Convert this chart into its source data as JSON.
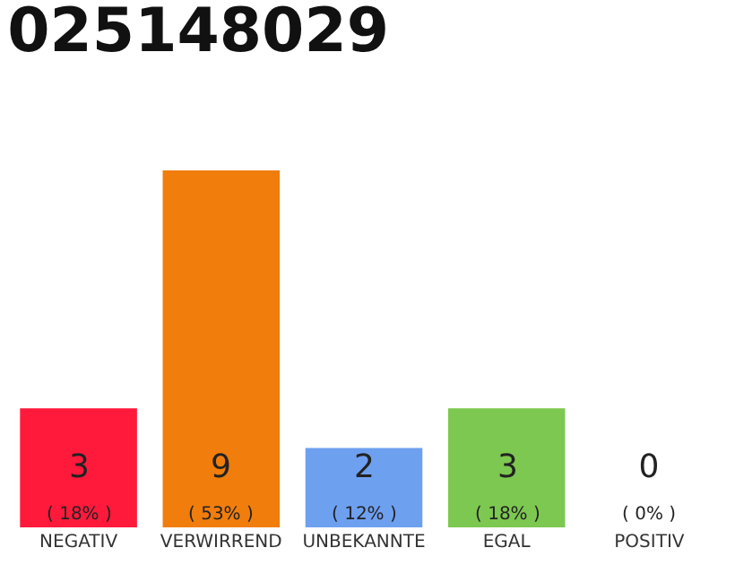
{
  "chart_data": {
    "type": "bar",
    "title": "025148029",
    "categories": [
      "NEGATIV",
      "VERWIRREND",
      "UNBEKANNTE",
      "EGAL",
      "POSITIV"
    ],
    "values": [
      3,
      9,
      2,
      3,
      0
    ],
    "colors": [
      "#ff1a3c",
      "#f07d0c",
      "#6ea0f0",
      "#7dc850",
      "#dddddd"
    ],
    "value_labels": [
      "3\n( 18% )",
      "9\n( 53% )",
      "2\n( 12% )",
      "3\n( 18% )",
      "0\n( 0% )"
    ],
    "grid": false
  }
}
